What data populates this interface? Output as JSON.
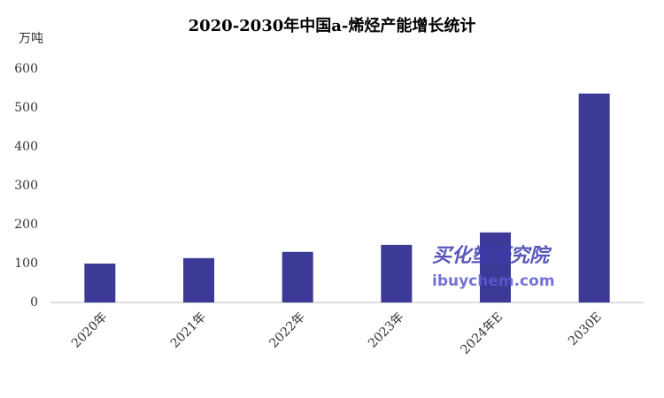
{
  "chart_data": {
    "type": "bar",
    "title": "2020-2030年中国a-烯烃产能增长统计",
    "y_label": "万吨",
    "categories": [
      "2020年",
      "2021年",
      "2022年",
      "2023年",
      "2024年E",
      "2030E"
    ],
    "values": [
      100,
      114,
      130,
      148,
      180,
      537
    ],
    "color": "#3c3a96",
    "ylim": [
      0,
      600
    ],
    "yticks": [
      0,
      100,
      200,
      300,
      400,
      500,
      600
    ],
    "grid": false,
    "watermark": [
      "买化塑研究院",
      "ibuychem.com"
    ]
  }
}
